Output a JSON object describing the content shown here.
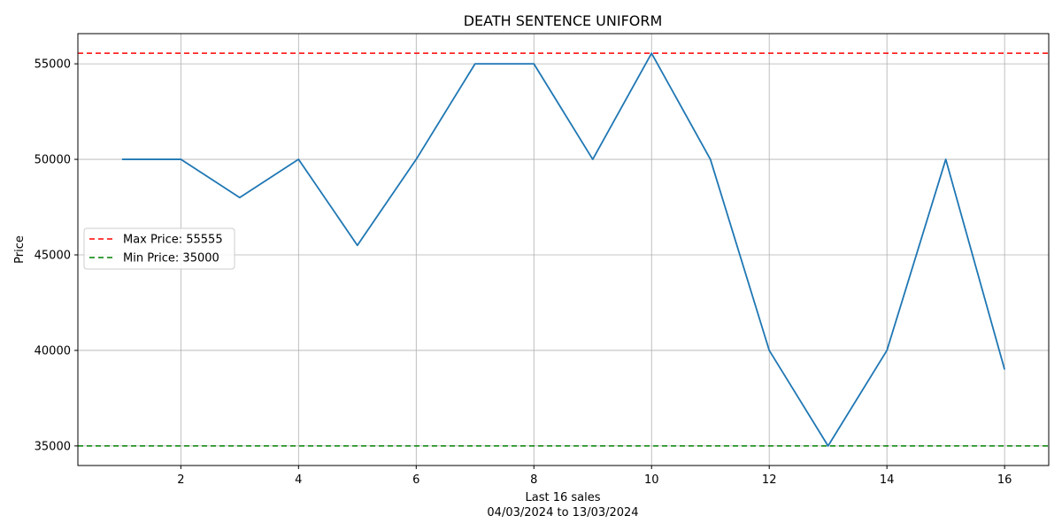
{
  "chart_data": {
    "type": "line",
    "title": "DEATH SENTENCE UNIFORM",
    "xlabel": "Last 16 sales",
    "xlabel_sub": "04/03/2024 to 13/03/2024",
    "ylabel": "Price",
    "x": [
      1,
      2,
      3,
      4,
      5,
      6,
      7,
      8,
      9,
      10,
      11,
      12,
      13,
      14,
      15,
      16
    ],
    "series": [
      {
        "values": [
          50000,
          50000,
          48000,
          50000,
          45500,
          50000,
          55000,
          55000,
          50000,
          55555,
          50000,
          40000,
          35000,
          40000,
          50000,
          39000
        ],
        "color": "#1f77b4"
      }
    ],
    "reference_lines": [
      {
        "name": "Max Price: 55555",
        "value": 55555,
        "color": "#ff0000",
        "style": "dashed"
      },
      {
        "name": "Min Price: 35000",
        "value": 35000,
        "color": "#008000",
        "style": "dashed"
      }
    ],
    "xlim": [
      0.25,
      16.75
    ],
    "ylim": [
      33975,
      56580
    ],
    "xticks": [
      2,
      4,
      6,
      8,
      10,
      12,
      14,
      16
    ],
    "yticks": [
      35000,
      40000,
      45000,
      50000,
      55000
    ],
    "grid": true,
    "legend_position": "center-left"
  }
}
